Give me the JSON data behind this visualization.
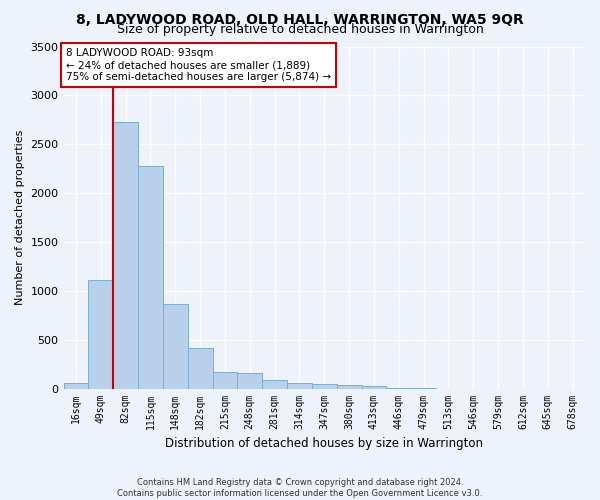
{
  "title": "8, LADYWOOD ROAD, OLD HALL, WARRINGTON, WA5 9QR",
  "subtitle": "Size of property relative to detached houses in Warrington",
  "xlabel": "Distribution of detached houses by size in Warrington",
  "ylabel": "Number of detached properties",
  "footnote1": "Contains HM Land Registry data © Crown copyright and database right 2024.",
  "footnote2": "Contains public sector information licensed under the Open Government Licence v3.0.",
  "bar_labels": [
    "16sqm",
    "49sqm",
    "82sqm",
    "115sqm",
    "148sqm",
    "182sqm",
    "215sqm",
    "248sqm",
    "281sqm",
    "314sqm",
    "347sqm",
    "380sqm",
    "413sqm",
    "446sqm",
    "479sqm",
    "513sqm",
    "546sqm",
    "579sqm",
    "612sqm",
    "645sqm",
    "678sqm"
  ],
  "bar_values": [
    55,
    1110,
    2730,
    2280,
    870,
    420,
    165,
    155,
    90,
    58,
    50,
    40,
    30,
    10,
    5,
    0,
    0,
    0,
    0,
    0,
    0
  ],
  "bar_color": "#b8d0ea",
  "bar_edgecolor": "#7aaed6",
  "vline_x_index": 2,
  "vline_color": "#cc0000",
  "annotation_line1": "8 LADYWOOD ROAD: 93sqm",
  "annotation_line2": "← 24% of detached houses are smaller (1,889)",
  "annotation_line3": "75% of semi-detached houses are larger (5,874) →",
  "annotation_box_edgecolor": "#cc0000",
  "ylim": [
    0,
    3500
  ],
  "yticks": [
    0,
    500,
    1000,
    1500,
    2000,
    2500,
    3000,
    3500
  ],
  "background_color": "#eef2fb",
  "grid_color": "#ffffff",
  "title_fontsize": 10,
  "subtitle_fontsize": 9,
  "xlabel_fontsize": 8.5,
  "ylabel_fontsize": 8,
  "ytick_fontsize": 8,
  "xtick_fontsize": 7,
  "annotation_fontsize": 7.5,
  "footnote_fontsize": 6
}
